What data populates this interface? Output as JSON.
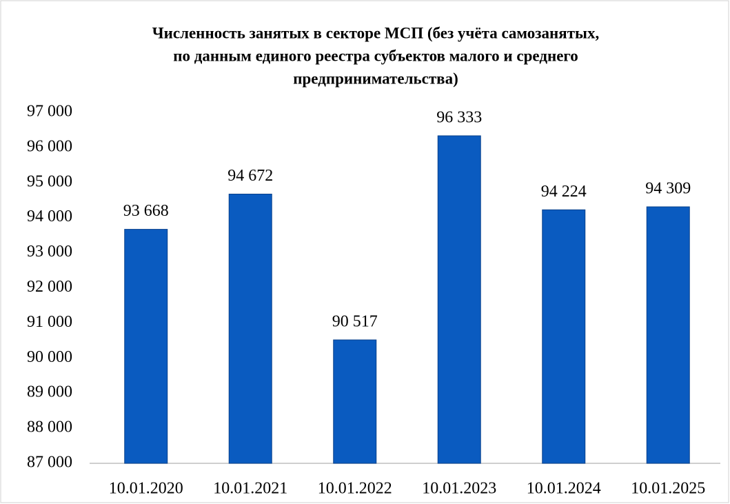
{
  "chart_data": {
    "type": "bar",
    "title": [
      "Численность занятых в секторе МСП (без учёта самозанятых,",
      "по данным единого реестра субъектов малого и среднего",
      "предпринимательства)"
    ],
    "categories": [
      "10.01.2020",
      "10.01.2021",
      "10.01.2022",
      "10.01.2023",
      "10.01.2024",
      "10.01.2025"
    ],
    "values": [
      93668,
      94672,
      90517,
      96333,
      94224,
      94309
    ],
    "value_labels": [
      "93 668",
      "94 672",
      "90 517",
      "96 333",
      "94 224",
      "94 309"
    ],
    "color": "#0a5bc0",
    "ylim": [
      87000,
      97000
    ],
    "yticks": [
      {
        "value": 87000,
        "label": "87 000"
      },
      {
        "value": 88000,
        "label": "88 000"
      },
      {
        "value": 89000,
        "label": "89 000"
      },
      {
        "value": 90000,
        "label": "90 000"
      },
      {
        "value": 91000,
        "label": "91 000"
      },
      {
        "value": 92000,
        "label": "92 000"
      },
      {
        "value": 93000,
        "label": "93 000"
      },
      {
        "value": 94000,
        "label": "94 000"
      },
      {
        "value": 95000,
        "label": "95 000"
      },
      {
        "value": 96000,
        "label": "96 000"
      },
      {
        "value": 97000,
        "label": "97 000"
      }
    ],
    "grid": false
  }
}
